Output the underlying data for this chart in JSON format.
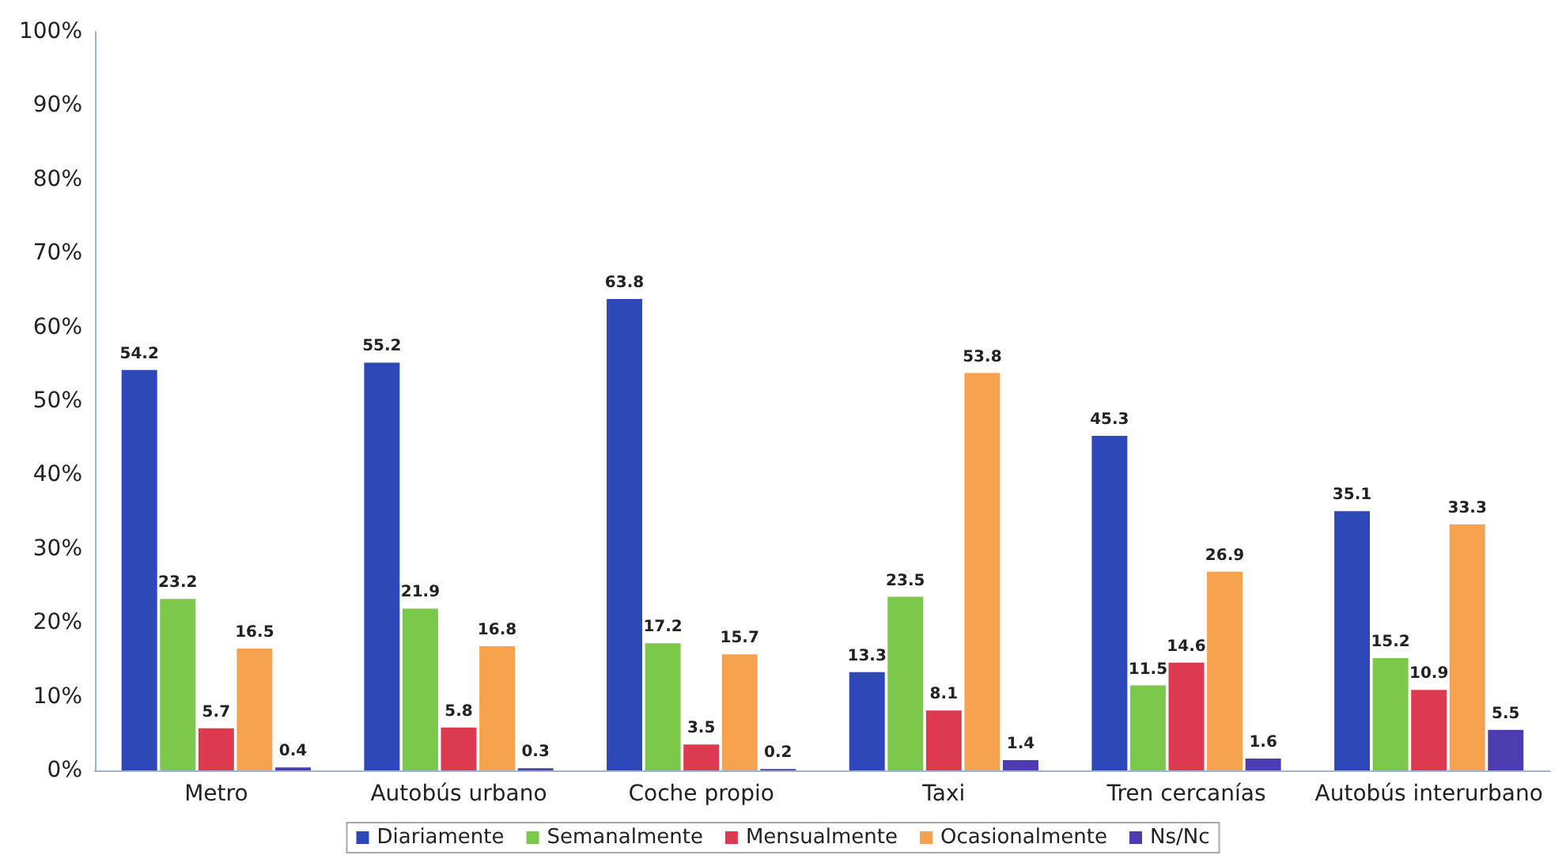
{
  "chart_data": {
    "type": "bar",
    "categories": [
      "Metro",
      "Autobús urbano",
      "Coche propio",
      "Taxi",
      "Tren cercanías",
      "Autobús interurbano"
    ],
    "series": [
      {
        "name": "Diariamente",
        "color": "#2f48b8",
        "values": [
          54.2,
          55.2,
          63.8,
          13.3,
          45.3,
          35.1
        ]
      },
      {
        "name": "Semanalmente",
        "color": "#7cc84a",
        "values": [
          23.2,
          21.9,
          17.2,
          23.5,
          11.5,
          15.2
        ]
      },
      {
        "name": "Mensualmente",
        "color": "#dc3a50",
        "values": [
          5.7,
          5.8,
          3.5,
          8.1,
          14.6,
          10.9
        ]
      },
      {
        "name": "Ocasionalmente",
        "color": "#f6a24e",
        "values": [
          16.5,
          16.8,
          15.7,
          53.8,
          26.9,
          33.3
        ]
      },
      {
        "name": "Ns/Nc",
        "color": "#4b3cb0",
        "values": [
          0.4,
          0.3,
          0.2,
          1.4,
          1.6,
          5.5
        ]
      }
    ],
    "ylim": [
      0,
      100
    ],
    "yticks": [
      {
        "value": 0,
        "label": "0%"
      },
      {
        "value": 10,
        "label": "10%"
      },
      {
        "value": 20,
        "label": "20%"
      },
      {
        "value": 30,
        "label": "30%"
      },
      {
        "value": 40,
        "label": "40%"
      },
      {
        "value": 50,
        "label": "50%"
      },
      {
        "value": 60,
        "label": "60%"
      },
      {
        "value": 70,
        "label": "70%"
      },
      {
        "value": 80,
        "label": "80%"
      },
      {
        "value": 90,
        "label": "90%"
      },
      {
        "value": 100,
        "label": "100%"
      }
    ],
    "data_labels": true,
    "grid": false,
    "legend": "bottom"
  }
}
